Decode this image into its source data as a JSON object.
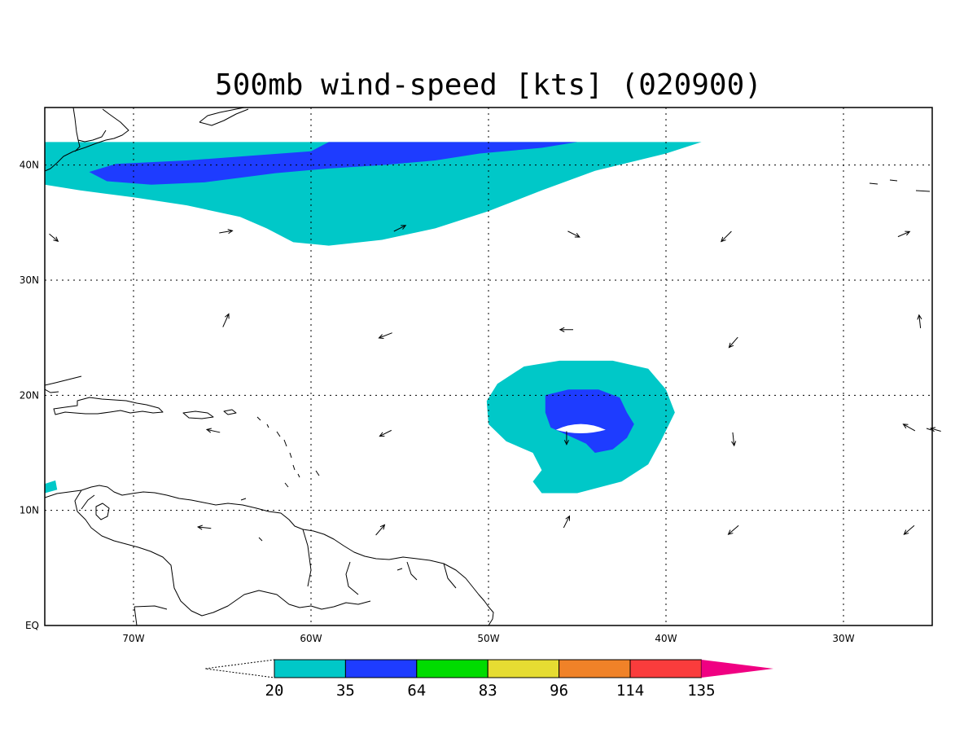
{
  "title": "500mb wind-speed [kts] (020900)",
  "map": {
    "lon_range": [
      -75,
      -25
    ],
    "lat_range": [
      0,
      45
    ],
    "lon_ticks": [
      {
        "value": -70,
        "label": "70W"
      },
      {
        "value": -60,
        "label": "60W"
      },
      {
        "value": -50,
        "label": "50W"
      },
      {
        "value": -40,
        "label": "40W"
      },
      {
        "value": -30,
        "label": "30W"
      }
    ],
    "lat_ticks": [
      {
        "value": 0,
        "label": "EQ"
      },
      {
        "value": 10,
        "label": "10N"
      },
      {
        "value": 20,
        "label": "20N"
      },
      {
        "value": 30,
        "label": "30N"
      },
      {
        "value": 40,
        "label": "40N"
      }
    ],
    "gridlines": "dotted"
  },
  "colorbar": {
    "levels": [
      {
        "label": "20",
        "color": "#00c8c8"
      },
      {
        "label": "35",
        "color": "#1e3cff"
      },
      {
        "label": "64",
        "color": "#00dc00"
      },
      {
        "label": "83",
        "color": "#e6dc32"
      },
      {
        "label": "96",
        "color": "#f08228"
      },
      {
        "label": "114",
        "color": "#fa3c3c"
      },
      {
        "label": "135",
        "color": "#f00082"
      }
    ],
    "under_color": "#ffffff"
  },
  "contours": [
    {
      "level": "20-35",
      "color": "#00c8c8",
      "points": [
        [
          -75,
          42
        ],
        [
          -38,
          42
        ],
        [
          -40,
          41
        ],
        [
          -44,
          39.5
        ],
        [
          -47,
          37.8
        ],
        [
          -50,
          36
        ],
        [
          -53,
          34.5
        ],
        [
          -56,
          33.5
        ],
        [
          -59,
          33
        ],
        [
          -61,
          33.3
        ],
        [
          -62.5,
          34.5
        ],
        [
          -64,
          35.5
        ],
        [
          -67,
          36.5
        ],
        [
          -70,
          37.2
        ],
        [
          -73,
          37.8
        ],
        [
          -75,
          38.3
        ]
      ]
    },
    {
      "level": "35-64",
      "color": "#1e3cff",
      "points": [
        [
          -60,
          41.2
        ],
        [
          -59,
          42
        ],
        [
          -45,
          42
        ],
        [
          -47,
          41.5
        ],
        [
          -50.5,
          41
        ],
        [
          -53,
          40.4
        ],
        [
          -56,
          40
        ],
        [
          -59,
          39.7
        ],
        [
          -62,
          39.3
        ],
        [
          -66,
          38.5
        ],
        [
          -69,
          38.3
        ],
        [
          -71.5,
          38.6
        ],
        [
          -72.5,
          39.4
        ],
        [
          -71,
          40.1
        ],
        [
          -67,
          40.4
        ],
        [
          -63.5,
          40.8
        ]
      ]
    },
    {
      "level": "20-35",
      "color": "#00c8c8",
      "points": [
        [
          -49.5,
          21
        ],
        [
          -48,
          22.5
        ],
        [
          -46,
          23
        ],
        [
          -43,
          23
        ],
        [
          -41,
          22.3
        ],
        [
          -40,
          20.5
        ],
        [
          -39.5,
          18.5
        ],
        [
          -40.3,
          16
        ],
        [
          -41,
          14
        ],
        [
          -42.5,
          12.5
        ],
        [
          -45,
          11.5
        ],
        [
          -47,
          11.5
        ],
        [
          -47.5,
          12.5
        ],
        [
          -47,
          13.5
        ],
        [
          -47.5,
          15
        ],
        [
          -49,
          16
        ],
        [
          -50,
          17.5
        ],
        [
          -50.1,
          19.5
        ]
      ]
    },
    {
      "level": "35-64",
      "color": "#1e3cff",
      "points": [
        [
          -46.8,
          20
        ],
        [
          -45.5,
          20.5
        ],
        [
          -43.8,
          20.5
        ],
        [
          -42.6,
          19.8
        ],
        [
          -42.2,
          18.5
        ],
        [
          -41.8,
          17.5
        ],
        [
          -42.2,
          16.3
        ],
        [
          -43,
          15.3
        ],
        [
          -44,
          15
        ],
        [
          -44.5,
          15.8
        ],
        [
          -45.5,
          16.5
        ],
        [
          -46.5,
          17.2
        ],
        [
          -46.8,
          18.5
        ]
      ]
    }
  ],
  "wind_vectors": [
    {
      "lon": -74.5,
      "lat": 33.7,
      "u": 0.6,
      "v": -0.5
    },
    {
      "lon": -64.8,
      "lat": 34.2,
      "u": 0.9,
      "v": 0.15
    },
    {
      "lon": -55,
      "lat": 34.5,
      "u": 0.8,
      "v": 0.4
    },
    {
      "lon": -45.2,
      "lat": 34,
      "u": 0.8,
      "v": -0.4
    },
    {
      "lon": -36.6,
      "lat": 33.8,
      "u": -0.7,
      "v": -0.7
    },
    {
      "lon": -26.6,
      "lat": 34,
      "u": 0.8,
      "v": 0.35
    },
    {
      "lon": -64.8,
      "lat": 26.5,
      "u": 0.4,
      "v": 0.9
    },
    {
      "lon": -55.8,
      "lat": 25.2,
      "u": -0.9,
      "v": -0.35
    },
    {
      "lon": -45.6,
      "lat": 25.7,
      "u": -0.9,
      "v": 0
    },
    {
      "lon": -36.2,
      "lat": 24.6,
      "u": -0.6,
      "v": -0.7
    },
    {
      "lon": -25.7,
      "lat": 26.4,
      "u": -0.1,
      "v": 0.9
    },
    {
      "lon": -65.5,
      "lat": 16.9,
      "u": -0.9,
      "v": 0.2
    },
    {
      "lon": -55.8,
      "lat": 16.7,
      "u": -0.8,
      "v": -0.4
    },
    {
      "lon": -45.6,
      "lat": 16.3,
      "u": 0,
      "v": -0.9
    },
    {
      "lon": -36.2,
      "lat": 16.2,
      "u": 0.1,
      "v": -0.9
    },
    {
      "lon": -26.3,
      "lat": 17.2,
      "u": -0.8,
      "v": 0.45
    },
    {
      "lon": -24.8,
      "lat": 17,
      "u": -0.7,
      "v": 0.2
    },
    {
      "lon": -66,
      "lat": 8.5,
      "u": -0.9,
      "v": 0.1
    },
    {
      "lon": -56.1,
      "lat": 8.3,
      "u": 0.6,
      "v": 0.7
    },
    {
      "lon": -45.6,
      "lat": 9,
      "u": 0.4,
      "v": 0.8
    },
    {
      "lon": -36.2,
      "lat": 8.3,
      "u": -0.7,
      "v": -0.6
    },
    {
      "lon": -26.3,
      "lat": 8.3,
      "u": -0.7,
      "v": -0.6
    }
  ]
}
